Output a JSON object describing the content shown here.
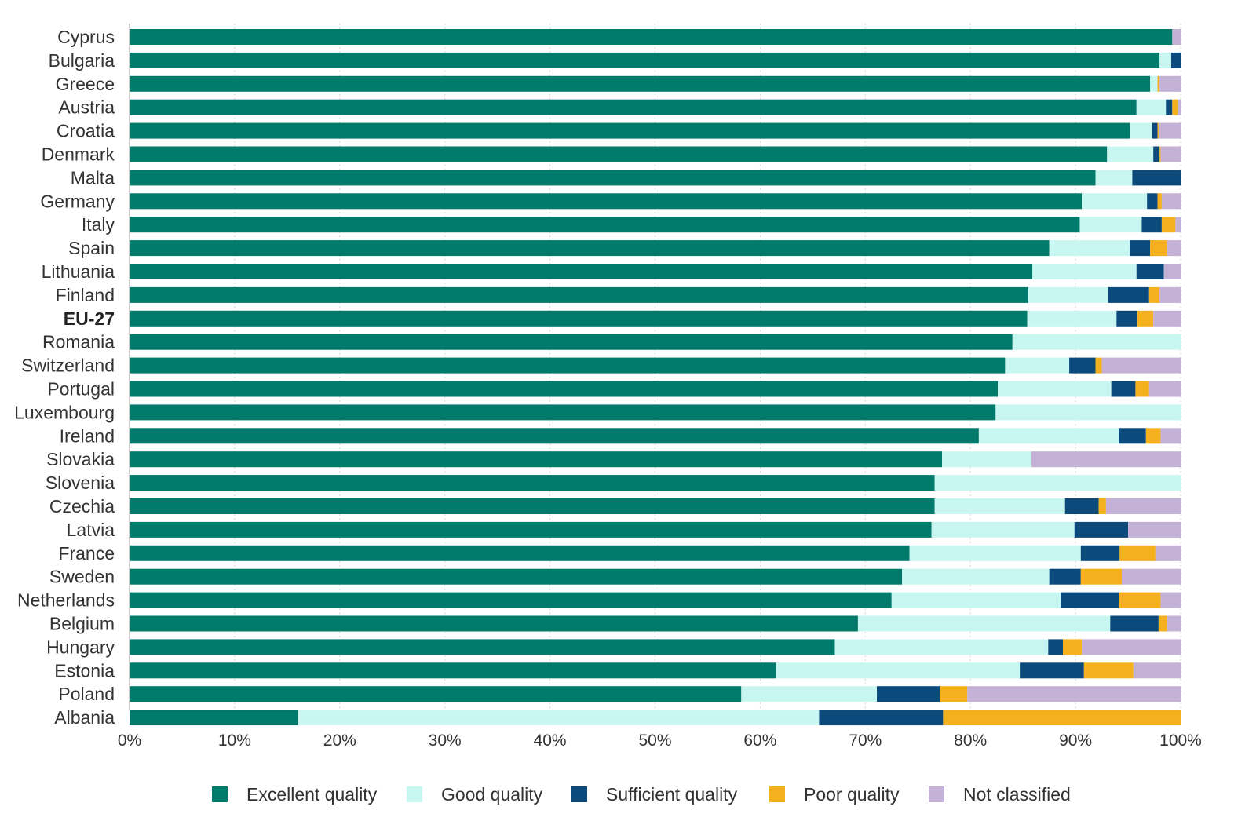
{
  "chart_data": {
    "type": "bar",
    "orientation": "horizontal",
    "stacked": true,
    "title": "",
    "xlabel": "",
    "ylabel": "",
    "xlim": [
      0,
      100
    ],
    "x_ticks": [
      "0%",
      "10%",
      "20%",
      "30%",
      "40%",
      "50%",
      "60%",
      "70%",
      "80%",
      "90%",
      "100%"
    ],
    "grid": "vertical",
    "legend_position": "bottom",
    "highlight_category": "EU-27",
    "categories": [
      "Cyprus",
      "Bulgaria",
      "Greece",
      "Austria",
      "Croatia",
      "Denmark",
      "Malta",
      "Germany",
      "Italy",
      "Spain",
      "Lithuania",
      "Finland",
      "EU-27",
      "Romania",
      "Switzerland",
      "Portugal",
      "Luxembourg",
      "Ireland",
      "Slovakia",
      "Slovenia",
      "Czechia",
      "Latvia",
      "France",
      "Sweden",
      "Netherlands",
      "Belgium",
      "Hungary",
      "Estonia",
      "Poland",
      "Albania"
    ],
    "series": [
      {
        "name": "Excellent quality",
        "color": "#007A6A",
        "values": [
          99.2,
          98.0,
          97.1,
          95.8,
          95.2,
          93.0,
          91.9,
          90.6,
          90.4,
          87.5,
          85.9,
          85.5,
          85.4,
          84.0,
          83.3,
          82.6,
          82.4,
          80.8,
          77.3,
          76.6,
          76.6,
          76.3,
          74.2,
          73.5,
          72.5,
          69.3,
          67.1,
          61.5,
          58.2,
          16.0
        ]
      },
      {
        "name": "Good quality",
        "color": "#C8F7F2",
        "values": [
          0.0,
          1.1,
          0.7,
          2.8,
          2.1,
          4.4,
          3.5,
          6.2,
          5.9,
          7.7,
          9.9,
          7.6,
          8.5,
          16.0,
          6.1,
          10.8,
          17.6,
          13.3,
          8.5,
          23.4,
          12.4,
          13.6,
          16.3,
          14.0,
          16.1,
          24.0,
          20.3,
          23.2,
          12.9,
          49.6
        ]
      },
      {
        "name": "Sufficient quality",
        "color": "#0B4A7A",
        "values": [
          0.0,
          0.9,
          0.0,
          0.6,
          0.5,
          0.6,
          4.6,
          1.0,
          1.9,
          1.9,
          2.6,
          3.9,
          2.0,
          0.0,
          2.5,
          2.3,
          0.0,
          2.6,
          0.0,
          0.0,
          3.2,
          5.1,
          3.7,
          3.0,
          5.5,
          4.6,
          1.4,
          6.1,
          6.0,
          11.8
        ]
      },
      {
        "name": "Poor quality",
        "color": "#F5B01E",
        "values": [
          0.0,
          0.0,
          0.2,
          0.5,
          0.1,
          0.1,
          0.0,
          0.4,
          1.3,
          1.6,
          0.0,
          1.0,
          1.5,
          0.0,
          0.6,
          1.3,
          0.0,
          1.4,
          0.0,
          0.0,
          0.7,
          0.0,
          3.4,
          3.9,
          4.0,
          0.8,
          1.8,
          4.7,
          2.6,
          22.6
        ]
      },
      {
        "name": "Not classified",
        "color": "#C3B1D6",
        "values": [
          0.8,
          0.0,
          2.0,
          0.3,
          2.1,
          1.9,
          0.0,
          1.8,
          0.5,
          1.3,
          1.6,
          2.0,
          2.6,
          0.0,
          7.5,
          3.0,
          0.0,
          1.9,
          14.2,
          0.0,
          7.1,
          5.0,
          2.4,
          5.6,
          1.9,
          1.3,
          9.4,
          4.5,
          20.3,
          0.0
        ]
      }
    ]
  }
}
